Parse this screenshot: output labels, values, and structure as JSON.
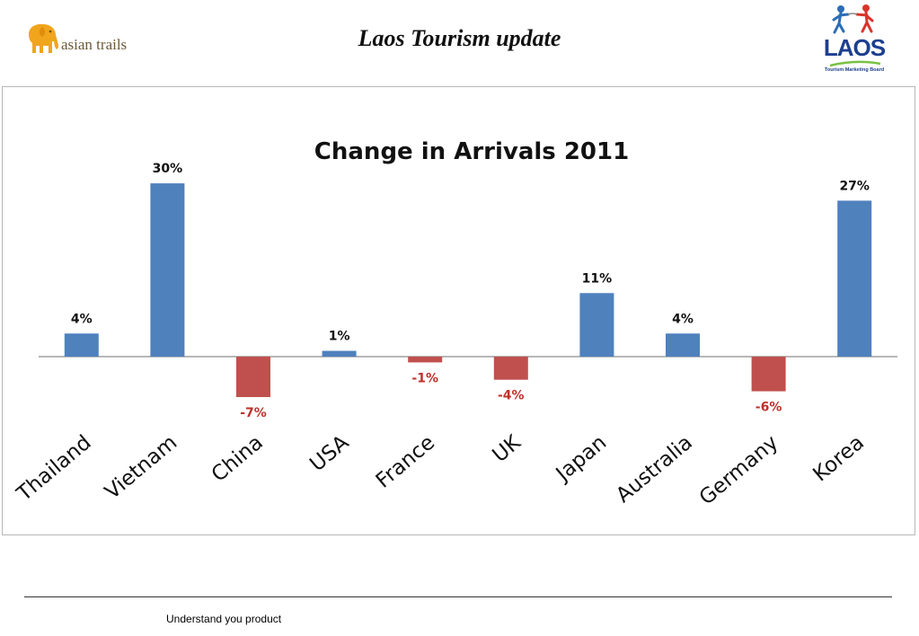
{
  "header": {
    "title": "Laos Tourism update",
    "left_logo": {
      "text": "asian trails",
      "icon": "elephant-icon",
      "color": "#f0a51c"
    },
    "right_logo": {
      "text": "LAOS",
      "tagline": "Tourism Marketing Board",
      "icon": "two-figures-icon"
    }
  },
  "chart_data": {
    "type": "bar",
    "title": "Change in Arrivals 2011",
    "categories": [
      "Thailand",
      "Vietnam",
      "China",
      "USA",
      "France",
      "UK",
      "Japan",
      "Australia",
      "Germany",
      "Korea"
    ],
    "values": [
      4,
      30,
      -7,
      1,
      -1,
      -4,
      11,
      4,
      -6,
      27
    ],
    "data_labels": [
      "4%",
      "30%",
      "-7%",
      "1%",
      "-1%",
      "-4%",
      "11%",
      "4%",
      "-6%",
      "27%"
    ],
    "unit": "%",
    "positive_color": "#4f81bd",
    "negative_color": "#c0504d",
    "negative_label_color": "#c0302a",
    "ylim": [
      -7,
      30
    ],
    "grid": false,
    "legend": "none"
  },
  "footer": {
    "text": "Understand you product"
  }
}
